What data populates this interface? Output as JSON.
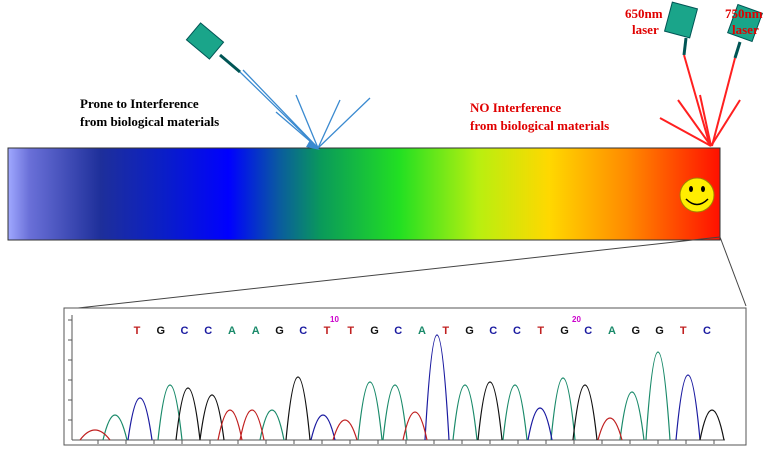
{
  "left_label": [
    "Prone to Interference",
    "from biological materials"
  ],
  "right_label": [
    "NO Interference",
    "from biological materials"
  ],
  "lasers": [
    {
      "wavelength": "650nm",
      "word": "laser"
    },
    {
      "wavelength": "750nm",
      "word": "laser"
    }
  ],
  "sequence": {
    "bases": [
      "T",
      "G",
      "C",
      "C",
      "A",
      "A",
      "G",
      "C",
      "T",
      "T",
      "G",
      "C",
      "A",
      "T",
      "G",
      "C",
      "C",
      "T",
      "G",
      "C",
      "A",
      "G",
      "G",
      "T",
      "C"
    ],
    "markers": [
      "10",
      "20"
    ]
  }
}
